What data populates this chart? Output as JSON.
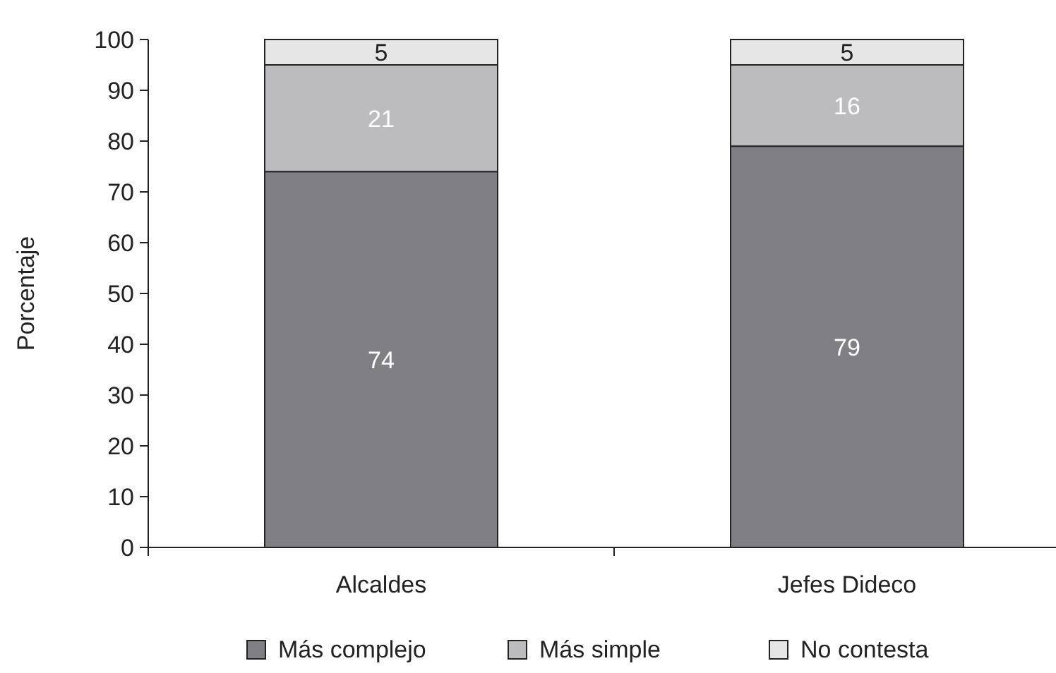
{
  "chart_data": {
    "type": "bar",
    "stacked": true,
    "ylabel": "Porcentaje",
    "categories": [
      "Alcaldes",
      "Jefes Dideco"
    ],
    "series": [
      {
        "name": "Más complejo",
        "color": "#808084",
        "values": [
          74,
          79
        ]
      },
      {
        "name": "Más simple",
        "color": "#bcbcbe",
        "values": [
          21,
          16
        ]
      },
      {
        "name": "No contesta",
        "color": "#e6e6e6",
        "values": [
          5,
          5
        ]
      }
    ],
    "ylim": [
      0,
      100
    ],
    "yticks": [
      0,
      10,
      20,
      30,
      40,
      50,
      60,
      70,
      80,
      90,
      100
    ],
    "data_labels": true,
    "legend": "bottom",
    "grid": false
  }
}
